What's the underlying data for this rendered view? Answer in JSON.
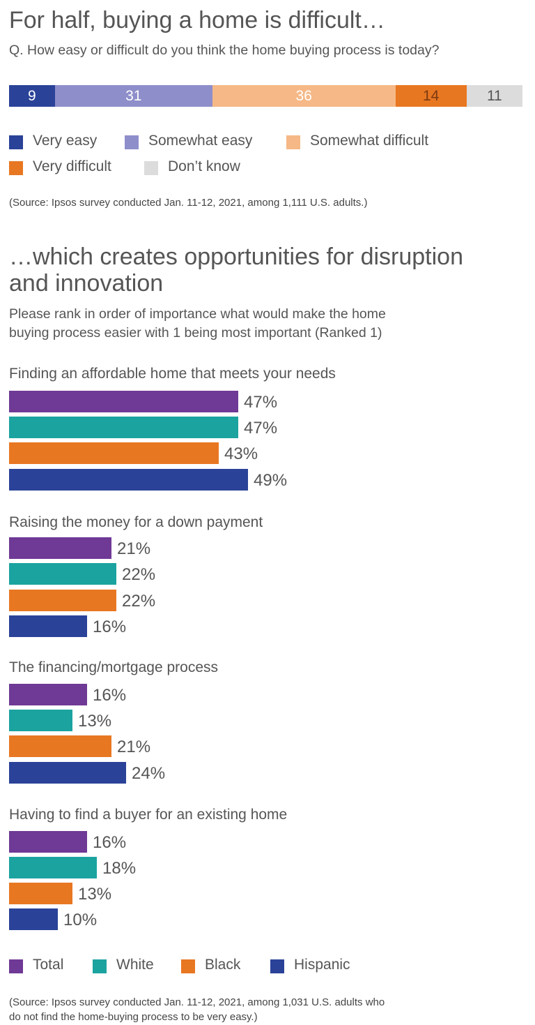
{
  "title1": "For half, buying a home is difficult…",
  "question1": "Q. How easy or difficult do you think the home buying process is today?",
  "source1": "(Source: Ipsos survey conducted Jan. 11-12, 2021, among 1,111 U.S. adults.)",
  "title2_line1": "…which creates opportunities for disruption",
  "title2_line2": "and innovation",
  "question2_line1": "Please rank in order of importance what would make the home",
  "question2_line2": "buying process easier with 1 being most important (Ranked 1)",
  "source2_line1": "(Source: Ipsos survey conducted Jan. 11-12, 2021, among 1,031 U.S. adults who",
  "source2_line2": "do not find the home-buying process to be very easy.)",
  "chart_data": [
    {
      "type": "bar",
      "orientation": "horizontal-stacked",
      "title": "For half, buying a home is difficult…",
      "series": [
        {
          "name": "Very easy",
          "value": 9,
          "label": "9",
          "color": "#2a4298",
          "text_color": "#ffffff"
        },
        {
          "name": "Somewhat easy",
          "value": 31,
          "label": "31",
          "color": "#8e8ecb",
          "text_color": "#ffffff"
        },
        {
          "name": "Somewhat difficult",
          "value": 36,
          "label": "36",
          "color": "#f5b886",
          "text_color": "#ffffff"
        },
        {
          "name": "Very difficult",
          "value": 14,
          "label": "14",
          "color": "#e87722",
          "text_color": "#7a3a10"
        },
        {
          "name": "Don’t know",
          "value": 11,
          "label": "11",
          "color": "#dcdcdc",
          "text_color": "#555555"
        }
      ],
      "legend": [
        "Very easy",
        "Somewhat easy",
        "Somewhat difficult",
        "Very difficult",
        "Don’t know"
      ],
      "legend_placement": "bottom"
    },
    {
      "type": "bar",
      "orientation": "horizontal",
      "categories": [
        "Finding an affordable home that meets your needs",
        "Raising the money for a down payment",
        "The financing/mortgage process",
        "Having to find a buyer for an existing home"
      ],
      "series": [
        {
          "name": "Total",
          "color": "#6f3996",
          "values": [
            47,
            21,
            16,
            16
          ],
          "labels": [
            "47%",
            "21%",
            "16%",
            "16%"
          ]
        },
        {
          "name": "White",
          "color": "#1ba3a0",
          "values": [
            47,
            22,
            13,
            18
          ],
          "labels": [
            "47%",
            "22%",
            "13%",
            "18%"
          ]
        },
        {
          "name": "Black",
          "color": "#e87722",
          "values": [
            43,
            22,
            21,
            13
          ],
          "labels": [
            "43%",
            "22%",
            "21%",
            "13%"
          ]
        },
        {
          "name": "Hispanic",
          "color": "#2a4298",
          "values": [
            49,
            16,
            24,
            10
          ],
          "labels": [
            "49%",
            "16%",
            "24%",
            "10%"
          ]
        }
      ],
      "legend_placement": "bottom"
    }
  ]
}
